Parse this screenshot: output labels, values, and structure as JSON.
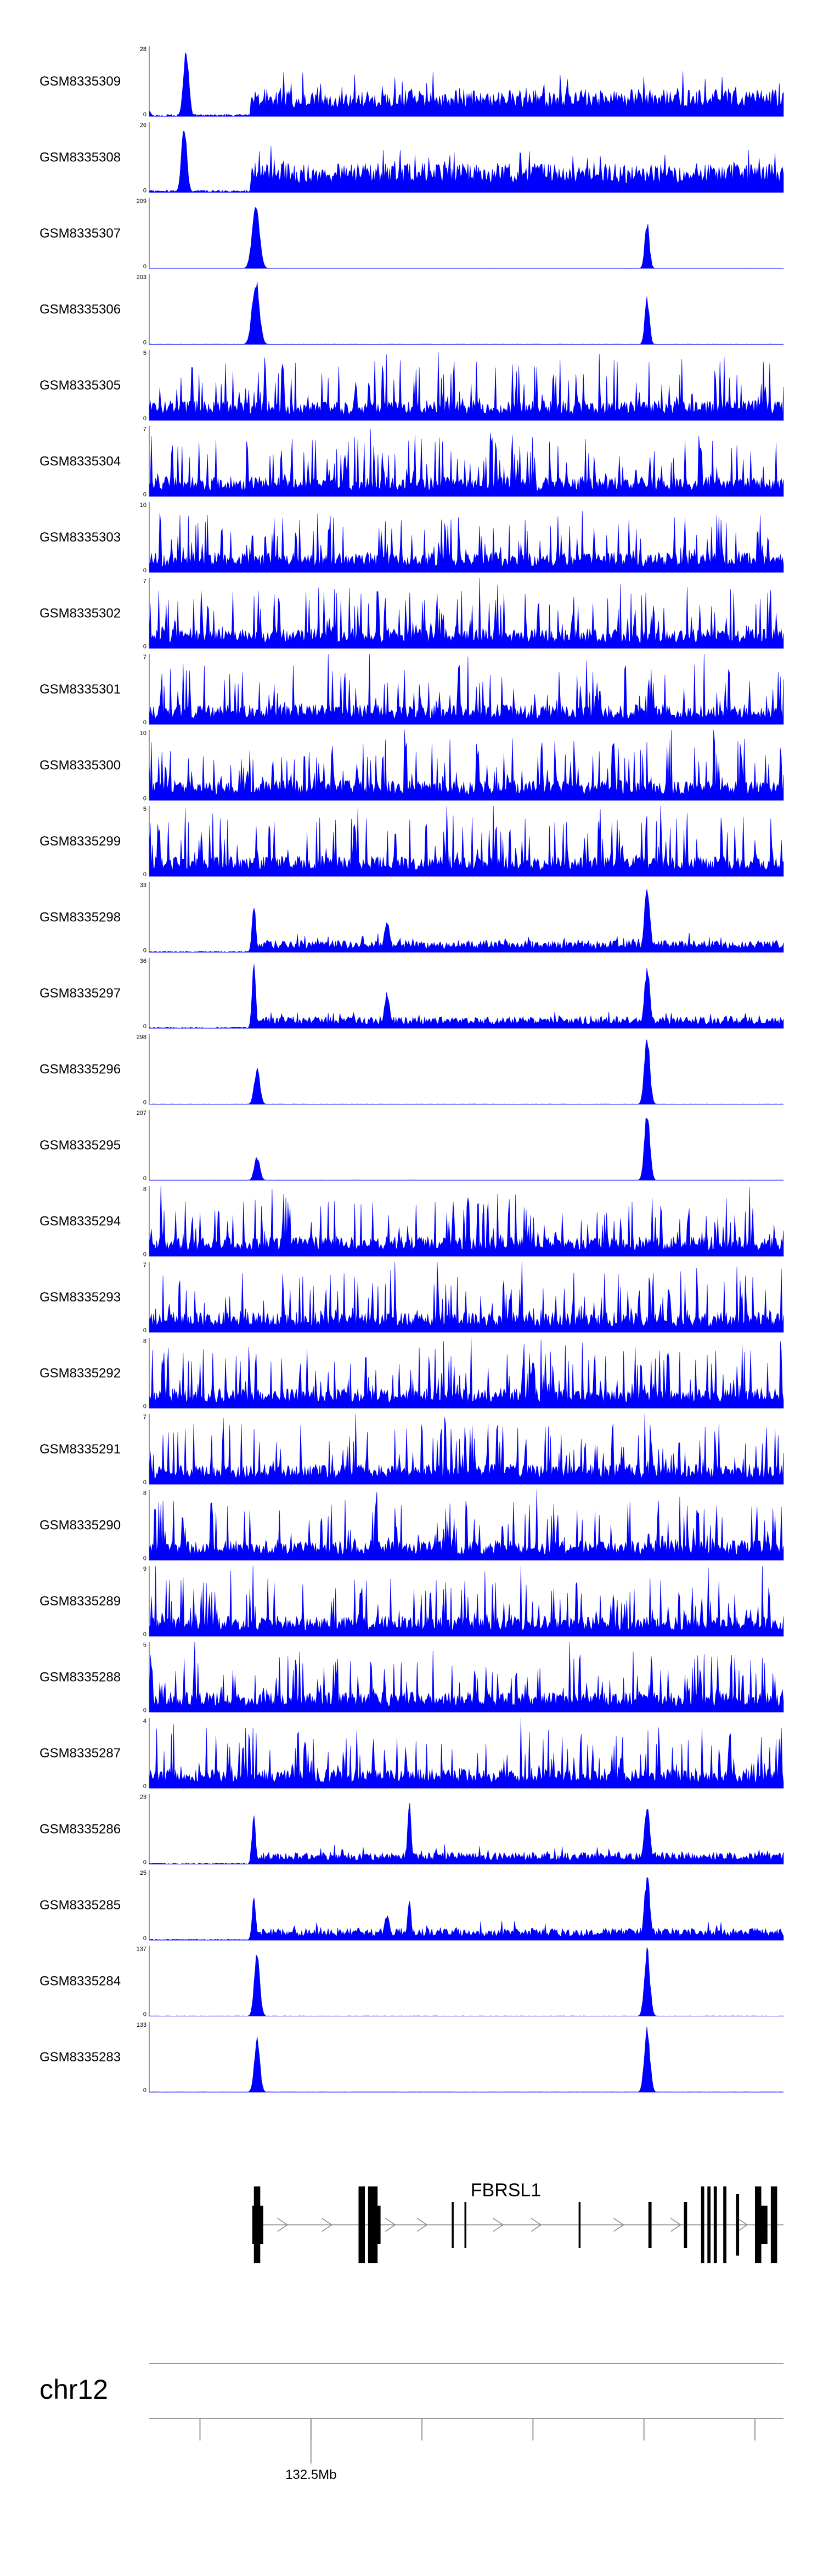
{
  "chart_data": {
    "type": "area",
    "color": "#0000ff",
    "tracks": [
      {
        "label": "GSM8335309",
        "ymax": "28",
        "ymin": "0",
        "profile": "broad",
        "seed": 309,
        "peaks": [
          [
            0.0,
            0.08,
            0.004
          ],
          [
            0.058,
            1.0,
            0.006
          ],
          [
            0.0,
            0.0,
            0.0
          ]
        ],
        "baseline": 0.3,
        "start": 0.16
      },
      {
        "label": "GSM8335308",
        "ymax": "26",
        "ymin": "0",
        "profile": "broad",
        "seed": 308,
        "peaks": [
          [
            0.055,
            1.0,
            0.006
          ]
        ],
        "baseline": 0.32,
        "start": 0.16
      },
      {
        "label": "GSM8335307",
        "ymax": "209",
        "ymin": "0",
        "profile": "sharp",
        "seed": 307,
        "peaks": [
          [
            0.168,
            1.0,
            0.008
          ],
          [
            0.785,
            0.7,
            0.005
          ]
        ]
      },
      {
        "label": "GSM8335306",
        "ymax": "203",
        "ymin": "0",
        "profile": "sharp",
        "seed": 306,
        "peaks": [
          [
            0.168,
            0.98,
            0.008
          ],
          [
            0.785,
            0.7,
            0.005
          ]
        ]
      },
      {
        "label": "GSM8335305",
        "ymax": "5",
        "ymin": "0",
        "profile": "noise",
        "seed": 305
      },
      {
        "label": "GSM8335304",
        "ymax": "7",
        "ymin": "0",
        "profile": "noise",
        "seed": 304
      },
      {
        "label": "GSM8335303",
        "ymax": "10",
        "ymin": "0",
        "profile": "noise",
        "seed": 303
      },
      {
        "label": "GSM8335302",
        "ymax": "7",
        "ymin": "0",
        "profile": "noise",
        "seed": 302
      },
      {
        "label": "GSM8335301",
        "ymax": "7",
        "ymin": "0",
        "profile": "noise",
        "seed": 301
      },
      {
        "label": "GSM8335300",
        "ymax": "10",
        "ymin": "0",
        "profile": "noise",
        "seed": 300
      },
      {
        "label": "GSM8335299",
        "ymax": "5",
        "ymin": "0",
        "profile": "noise",
        "seed": 299
      },
      {
        "label": "GSM8335298",
        "ymax": "33",
        "ymin": "0",
        "profile": "mixed",
        "seed": 298,
        "peaks": [
          [
            0.165,
            0.75,
            0.004
          ],
          [
            0.375,
            0.5,
            0.006
          ],
          [
            0.785,
            1.0,
            0.006
          ]
        ]
      },
      {
        "label": "GSM8335297",
        "ymax": "36",
        "ymin": "0",
        "profile": "mixed",
        "seed": 297,
        "peaks": [
          [
            0.165,
            0.95,
            0.004
          ],
          [
            0.375,
            0.55,
            0.006
          ],
          [
            0.785,
            0.95,
            0.006
          ]
        ]
      },
      {
        "label": "GSM8335296",
        "ymax": "298",
        "ymin": "0",
        "profile": "sharp",
        "seed": 296,
        "peaks": [
          [
            0.17,
            0.55,
            0.006
          ],
          [
            0.785,
            1.0,
            0.006
          ]
        ]
      },
      {
        "label": "GSM8335295",
        "ymax": "207",
        "ymin": "0",
        "profile": "sharp",
        "seed": 295,
        "peaks": [
          [
            0.17,
            0.35,
            0.006
          ],
          [
            0.785,
            1.0,
            0.006
          ]
        ]
      },
      {
        "label": "GSM8335294",
        "ymax": "8",
        "ymin": "0",
        "profile": "noise",
        "seed": 294
      },
      {
        "label": "GSM8335293",
        "ymax": "7",
        "ymin": "0",
        "profile": "noise",
        "seed": 293
      },
      {
        "label": "GSM8335292",
        "ymax": "8",
        "ymin": "0",
        "profile": "noise",
        "seed": 292
      },
      {
        "label": "GSM8335291",
        "ymax": "7",
        "ymin": "0",
        "profile": "noise",
        "seed": 291
      },
      {
        "label": "GSM8335290",
        "ymax": "8",
        "ymin": "0",
        "profile": "noise",
        "seed": 290
      },
      {
        "label": "GSM8335289",
        "ymax": "9",
        "ymin": "0",
        "profile": "noise",
        "seed": 289
      },
      {
        "label": "GSM8335288",
        "ymax": "5",
        "ymin": "0",
        "profile": "noise",
        "seed": 288
      },
      {
        "label": "GSM8335287",
        "ymax": "4",
        "ymin": "0",
        "profile": "noise",
        "seed": 287
      },
      {
        "label": "GSM8335286",
        "ymax": "23",
        "ymin": "0",
        "profile": "mixed",
        "seed": 286,
        "peaks": [
          [
            0.165,
            0.7,
            0.004
          ],
          [
            0.41,
            0.9,
            0.004
          ],
          [
            0.785,
            0.9,
            0.006
          ]
        ]
      },
      {
        "label": "GSM8335285",
        "ymax": "25",
        "ymin": "0",
        "profile": "mixed",
        "seed": 285,
        "peaks": [
          [
            0.165,
            0.65,
            0.004
          ],
          [
            0.375,
            0.4,
            0.006
          ],
          [
            0.41,
            0.6,
            0.004
          ],
          [
            0.785,
            1.0,
            0.006
          ]
        ]
      },
      {
        "label": "GSM8335284",
        "ymax": "137",
        "ymin": "0",
        "profile": "sharp",
        "seed": 284,
        "peaks": [
          [
            0.17,
            0.95,
            0.006
          ],
          [
            0.785,
            1.0,
            0.006
          ]
        ]
      },
      {
        "label": "GSM8335283",
        "ymax": "133",
        "ymin": "0",
        "profile": "sharp",
        "seed": 283,
        "peaks": [
          [
            0.17,
            0.8,
            0.006
          ],
          [
            0.785,
            1.0,
            0.006
          ]
        ]
      }
    ],
    "gene": {
      "name": "FBRSL1",
      "start": 0.165,
      "end": 1.0,
      "exons": [
        [
          0.165,
          0.175,
          1.0
        ],
        [
          0.33,
          0.34,
          1.0
        ],
        [
          0.345,
          0.36,
          1.0
        ],
        [
          0.477,
          0.48,
          0.6
        ],
        [
          0.497,
          0.5,
          0.6
        ],
        [
          0.677,
          0.68,
          0.6
        ],
        [
          0.787,
          0.792,
          0.6
        ],
        [
          0.843,
          0.848,
          0.6
        ],
        [
          0.87,
          0.875,
          1.0
        ],
        [
          0.88,
          0.885,
          1.0
        ],
        [
          0.89,
          0.895,
          1.0
        ],
        [
          0.905,
          0.91,
          1.0
        ],
        [
          0.925,
          0.93,
          0.8
        ],
        [
          0.955,
          0.965,
          1.0
        ],
        [
          0.98,
          0.99,
          1.0
        ]
      ],
      "arrows": [
        0.21,
        0.28,
        0.38,
        0.43,
        0.55,
        0.61,
        0.74,
        0.83,
        0.935
      ]
    },
    "chromosome": "chr12",
    "tick_positions": [
      0.08,
      0.255,
      0.43,
      0.605,
      0.78,
      0.955
    ],
    "tick_label": "132.5Mb",
    "tick_label_at": 0.255
  }
}
